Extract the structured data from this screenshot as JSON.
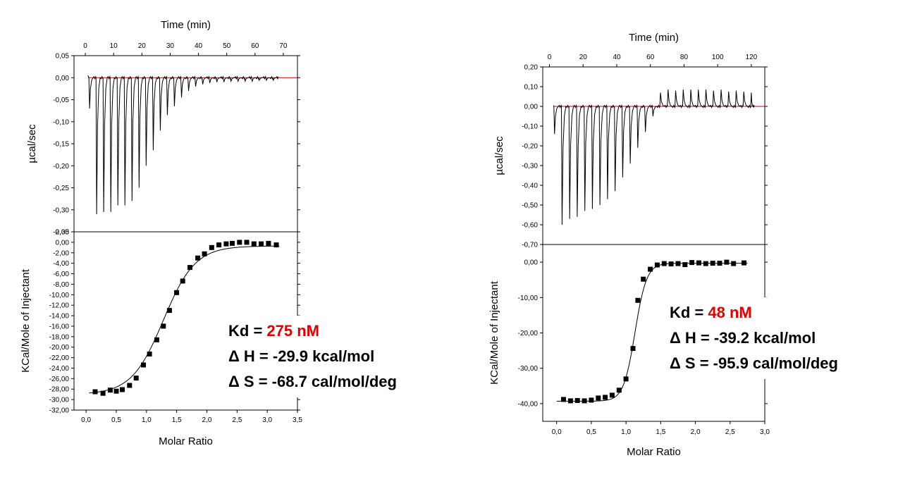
{
  "chart_data": [
    {
      "panel": "left",
      "top": {
        "type": "line",
        "xlabel": "Time (min)",
        "ylabel": "µcal/sec",
        "xlim": [
          -4,
          75
        ],
        "ylim": [
          -0.35,
          0.05
        ],
        "xticks": [
          "0",
          "10",
          "20",
          "30",
          "40",
          "50",
          "60",
          "70"
        ],
        "yticks": [
          "0,05",
          "0,00",
          "-0,05",
          "-0,10",
          "-0,15",
          "-0,20",
          "-0,25",
          "-0,30",
          "-0,35"
        ],
        "baseline_color": "#cc0000",
        "injections": [
          {
            "t": 1.5,
            "peak": -0.07
          },
          {
            "t": 4,
            "peak": -0.31
          },
          {
            "t": 6.5,
            "peak": -0.305
          },
          {
            "t": 9,
            "peak": -0.305
          },
          {
            "t": 11.5,
            "peak": -0.29
          },
          {
            "t": 14,
            "peak": -0.29
          },
          {
            "t": 16.5,
            "peak": -0.28
          },
          {
            "t": 19,
            "peak": -0.25
          },
          {
            "t": 21.5,
            "peak": -0.2
          },
          {
            "t": 24,
            "peak": -0.165
          },
          {
            "t": 26.5,
            "peak": -0.12
          },
          {
            "t": 29,
            "peak": -0.085
          },
          {
            "t": 31.5,
            "peak": -0.065
          },
          {
            "t": 34,
            "peak": -0.045
          },
          {
            "t": 36.5,
            "peak": -0.03
          },
          {
            "t": 39,
            "peak": -0.02
          },
          {
            "t": 41.5,
            "peak": -0.015
          },
          {
            "t": 44,
            "peak": -0.012
          },
          {
            "t": 46.5,
            "peak": -0.01
          },
          {
            "t": 49,
            "peak": -0.01
          },
          {
            "t": 51.5,
            "peak": -0.008
          },
          {
            "t": 54,
            "peak": -0.008
          },
          {
            "t": 56.5,
            "peak": -0.008
          },
          {
            "t": 59,
            "peak": -0.008
          },
          {
            "t": 61.5,
            "peak": -0.006
          },
          {
            "t": 64,
            "peak": -0.006
          },
          {
            "t": 66.5,
            "peak": -0.006
          }
        ]
      },
      "bottom": {
        "type": "scatter",
        "xlabel": "Molar Ratio",
        "ylabel": "KCal/Mole of Injectant",
        "xlim": [
          -0.2,
          3.5
        ],
        "ylim": [
          -32,
          2
        ],
        "xticks": [
          "0,0",
          "0,5",
          "1,0",
          "1,5",
          "2,0",
          "2,5",
          "3,0",
          "3,5"
        ],
        "yticks": [
          "2,00",
          "0,00",
          "-2,00",
          "-4,00",
          "-6,00",
          "-8,00",
          "-10,00",
          "-12,00",
          "-14,00",
          "-16,00",
          "-18,00",
          "-20,00",
          "-22,00",
          "-24,00",
          "-26,00",
          "-28,00",
          "-30,00",
          "-32,00"
        ],
        "x": [
          0.15,
          0.28,
          0.4,
          0.5,
          0.6,
          0.72,
          0.83,
          0.95,
          1.05,
          1.17,
          1.28,
          1.38,
          1.5,
          1.6,
          1.72,
          1.85,
          1.96,
          2.08,
          2.2,
          2.32,
          2.42,
          2.54,
          2.66,
          2.78,
          2.9,
          3.02,
          3.15
        ],
        "y": [
          -28.5,
          -28.8,
          -28.2,
          -28.4,
          -28.1,
          -27.3,
          -25.9,
          -23.4,
          -21.3,
          -18.6,
          -16.0,
          -13.0,
          -9.6,
          -7.4,
          -4.8,
          -3.0,
          -2.2,
          -1.0,
          -0.5,
          -0.3,
          -0.2,
          0.0,
          0.0,
          -0.3,
          -0.3,
          -0.2,
          -0.5
        ],
        "fit": {
          "bottom": -29.0,
          "top": -0.7,
          "midpoint": 1.28,
          "slope": 3.8
        }
      },
      "annotation": {
        "kd_label": "Kd = ",
        "kd_value": "275 nM",
        "dh": "Δ H = -29.9 kcal/mol",
        "ds": "Δ S = -68.7 cal/mol/deg"
      }
    },
    {
      "panel": "right",
      "top": {
        "type": "line",
        "xlabel": "Time (min)",
        "ylabel": "µcal/sec",
        "xlim": [
          -4,
          128
        ],
        "ylim": [
          -0.7,
          0.2
        ],
        "xticks": [
          "0",
          "20",
          "40",
          "60",
          "80",
          "100",
          "120"
        ],
        "yticks": [
          "0,20",
          "0,10",
          "0,00",
          "-0,10",
          "-0,20",
          "-0,30",
          "-0,40",
          "-0,50",
          "-0,60",
          "-0,70"
        ],
        "baseline_color": "#cc0000",
        "injections": [
          {
            "t": 3,
            "peak": -0.14
          },
          {
            "t": 7.5,
            "peak": -0.6
          },
          {
            "t": 12,
            "peak": -0.57
          },
          {
            "t": 16.5,
            "peak": -0.56
          },
          {
            "t": 21,
            "peak": -0.53
          },
          {
            "t": 25.5,
            "peak": -0.52
          },
          {
            "t": 30,
            "peak": -0.5
          },
          {
            "t": 34.5,
            "peak": -0.47
          },
          {
            "t": 39,
            "peak": -0.43
          },
          {
            "t": 43.5,
            "peak": -0.36
          },
          {
            "t": 48,
            "peak": -0.29
          },
          {
            "t": 52.5,
            "peak": -0.21
          },
          {
            "t": 57,
            "peak": -0.13
          },
          {
            "t": 61.5,
            "peak": -0.05
          },
          {
            "t": 66,
            "peak": 0.07
          },
          {
            "t": 70.5,
            "peak": 0.085
          },
          {
            "t": 75,
            "peak": 0.08
          },
          {
            "t": 79.5,
            "peak": 0.085
          },
          {
            "t": 84,
            "peak": 0.085
          },
          {
            "t": 88.5,
            "peak": 0.085
          },
          {
            "t": 93,
            "peak": 0.085
          },
          {
            "t": 97.5,
            "peak": 0.08
          },
          {
            "t": 102,
            "peak": 0.085
          },
          {
            "t": 106.5,
            "peak": 0.075
          },
          {
            "t": 111,
            "peak": 0.08
          },
          {
            "t": 115.5,
            "peak": 0.075
          },
          {
            "t": 120,
            "peak": 0.07
          }
        ]
      },
      "bottom": {
        "type": "scatter",
        "xlabel": "Molar Ratio",
        "ylabel": "KCal/Mole of Injectant",
        "xlim": [
          -0.2,
          3.0
        ],
        "ylim": [
          -45,
          5
        ],
        "xticks": [
          "0,0",
          "0,5",
          "1,0",
          "1,5",
          "2,0",
          "2,5",
          "3,0"
        ],
        "yticks": [
          "0,00",
          "-10,00",
          "-20,00",
          "-30,00",
          "-40,00"
        ],
        "x": [
          0.1,
          0.2,
          0.3,
          0.4,
          0.5,
          0.6,
          0.7,
          0.8,
          0.9,
          1.0,
          1.1,
          1.17,
          1.25,
          1.35,
          1.45,
          1.55,
          1.65,
          1.75,
          1.85,
          1.95,
          2.05,
          2.15,
          2.25,
          2.35,
          2.45,
          2.55,
          2.7
        ],
        "y": [
          -38.8,
          -39.2,
          -39.1,
          -39.2,
          -39.0,
          -38.4,
          -38.2,
          -37.6,
          -36.2,
          -33.0,
          -24.4,
          -10.8,
          -4.8,
          -2.0,
          -0.8,
          -0.4,
          -0.5,
          -0.4,
          -0.7,
          -0.1,
          -0.2,
          -0.4,
          -0.3,
          -0.3,
          0.0,
          -0.4,
          -0.2
        ],
        "fit": {
          "bottom": -39.3,
          "top": -0.3,
          "midpoint": 1.13,
          "slope": 12
        }
      },
      "annotation": {
        "kd_label": "Kd = ",
        "kd_value": "48 nM",
        "dh": "Δ H = -39.2 kcal/mol",
        "ds": "Δ S = -95.9 cal/mol/deg"
      }
    }
  ]
}
